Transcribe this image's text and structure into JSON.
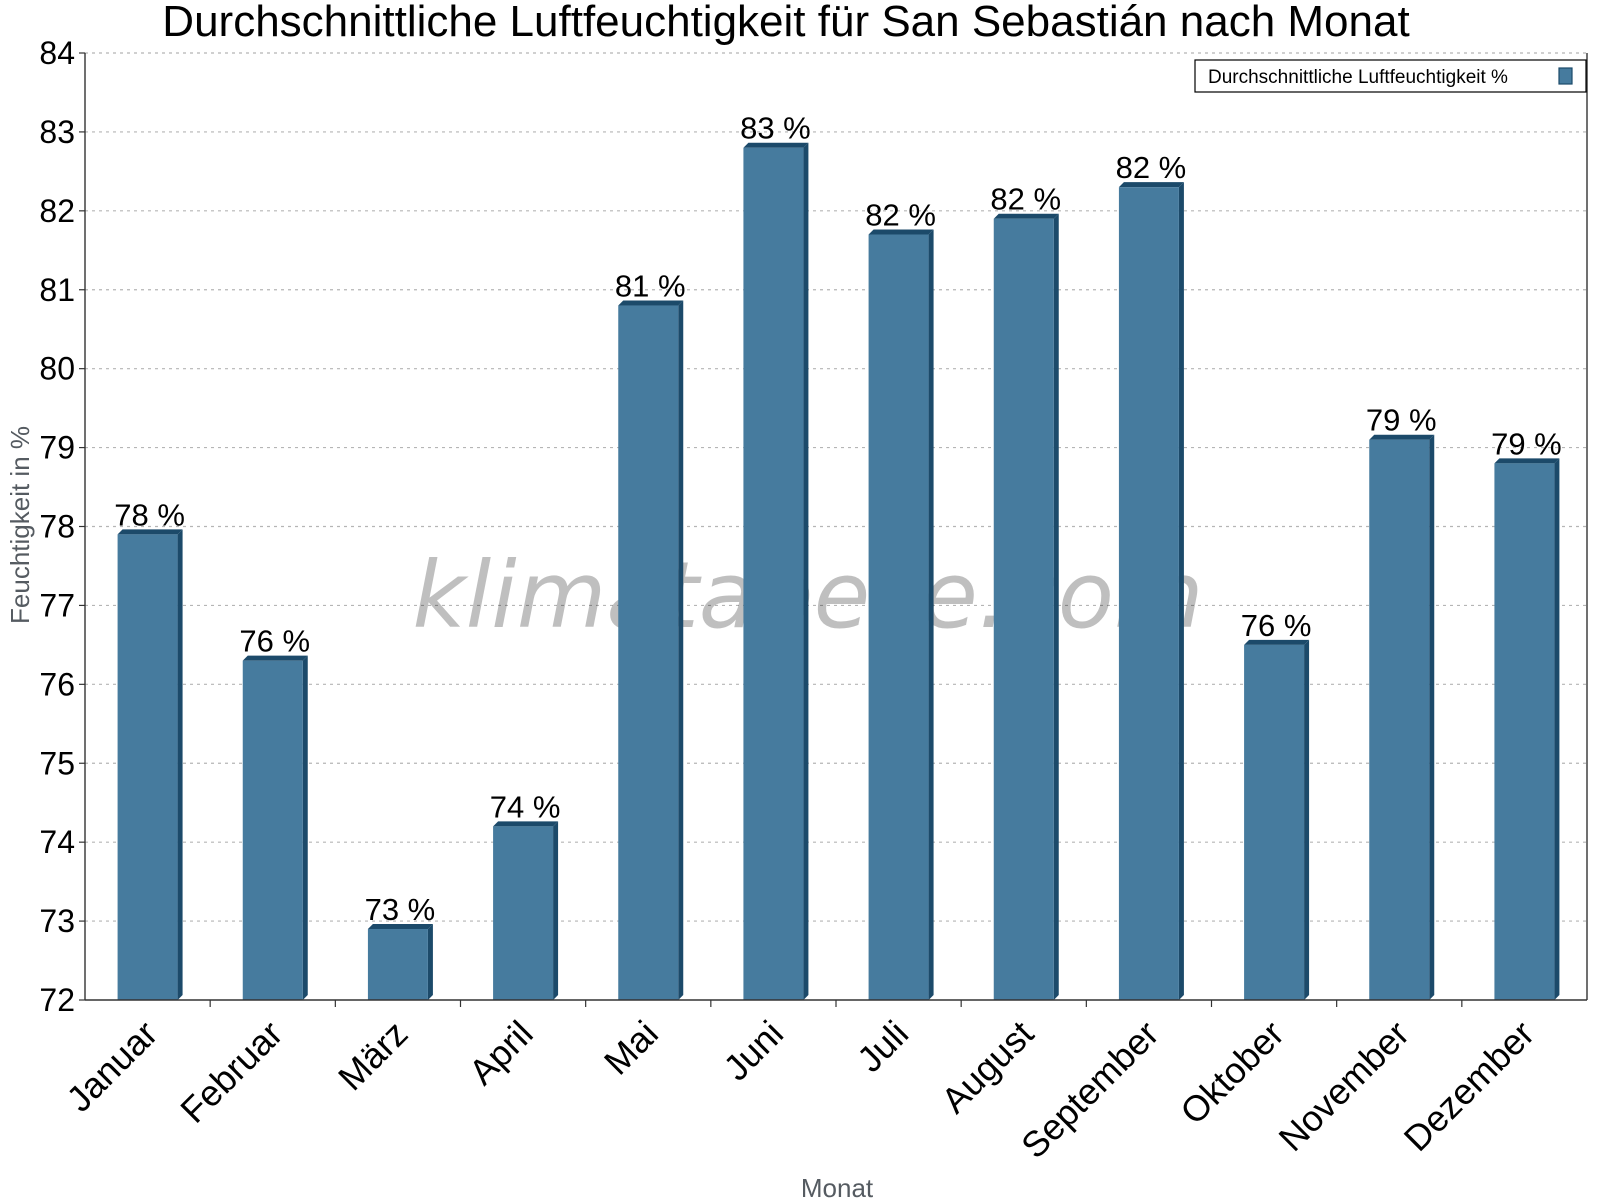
{
  "chart_data": {
    "type": "bar",
    "title": "Durchschnittliche Luftfeuchtigkeit für San Sebastián nach Monat",
    "xlabel": "Monat",
    "ylabel": "Feuchtigkeit in %",
    "categories": [
      "Januar",
      "Februar",
      "März",
      "April",
      "Mai",
      "Juni",
      "Juli",
      "August",
      "September",
      "Oktober",
      "November",
      "Dezember"
    ],
    "series": [
      {
        "name": "Durchschnittliche Luftfeuchtigkeit %",
        "values": [
          77.9,
          76.3,
          72.9,
          74.2,
          80.8,
          82.8,
          81.7,
          81.9,
          82.3,
          76.5,
          79.1,
          78.8
        ],
        "labels": [
          "78 %",
          "76 %",
          "73 %",
          "74 %",
          "81 %",
          "83 %",
          "82 %",
          "82 %",
          "82 %",
          "76 %",
          "79 %",
          "79 %"
        ]
      }
    ],
    "ylim": [
      72,
      84
    ],
    "yticks": [
      72,
      73,
      74,
      75,
      76,
      77,
      78,
      79,
      80,
      81,
      82,
      83,
      84
    ],
    "grid": true,
    "legend_position": "top-right",
    "bar_color": "#467b9e",
    "bar_shadow_color": "#1c4a6a"
  },
  "watermark": "klimatabelle.com"
}
